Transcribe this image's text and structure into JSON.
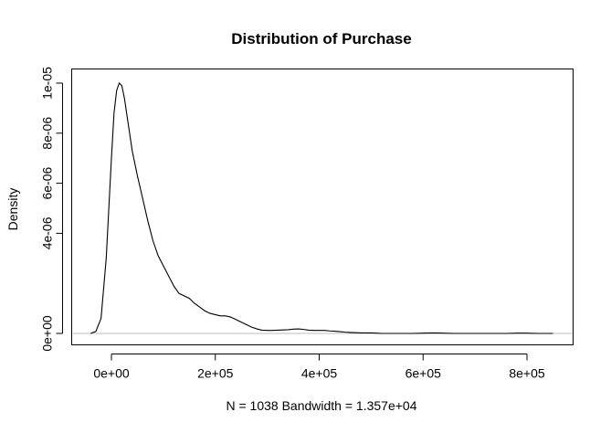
{
  "chart_data": {
    "type": "line",
    "title": "Distribution of Purchase",
    "ylabel": "Density",
    "xlabel": "N = 1038   Bandwidth = 1.357e+04",
    "xlim": [
      -60000,
      900000
    ],
    "ylim": [
      -4e-07,
      1.035e-05
    ],
    "x_ticks": [
      0,
      200000,
      400000,
      600000,
      800000
    ],
    "x_tick_labels": [
      "0e+00",
      "2e+05",
      "4e+05",
      "6e+05",
      "8e+05"
    ],
    "y_ticks": [
      0,
      4e-06,
      6e-06,
      8e-06,
      1e-05
    ],
    "y_tick_labels": [
      "0e+00",
      "4e-06",
      "6e-06",
      "8e-06",
      "1e-05"
    ],
    "zero_line": true,
    "grid": false,
    "series": [
      {
        "x": [
          -40000,
          -30000,
          -20000,
          -10000,
          0,
          5000,
          10000,
          15000,
          20000,
          25000,
          30000,
          40000,
          50000,
          60000,
          70000,
          80000,
          90000,
          100000,
          110000,
          120000,
          130000,
          140000,
          150000,
          160000,
          170000,
          180000,
          190000,
          200000,
          210000,
          220000,
          230000,
          240000,
          250000,
          260000,
          270000,
          280000,
          290000,
          300000,
          310000,
          320000,
          330000,
          340000,
          350000,
          360000,
          370000,
          380000,
          390000,
          400000,
          410000,
          420000,
          430000,
          440000,
          450000,
          460000,
          470000,
          480000,
          490000,
          500000,
          510000,
          520000,
          530000,
          540000,
          550000,
          560000,
          580000,
          600000,
          620000,
          640000,
          660000,
          680000,
          700000,
          720000,
          740000,
          760000,
          780000,
          800000,
          820000,
          840000,
          850000
        ],
        "y": [
          0.0,
          8e-08,
          6e-07,
          3e-06,
          7e-06,
          8.8e-06,
          9.7e-06,
          1e-05,
          9.9e-06,
          9.4e-06,
          8.7e-06,
          7.3e-06,
          6.3e-06,
          5.4e-06,
          4.5e-06,
          3.7e-06,
          3.1e-06,
          2.7e-06,
          2.3e-06,
          1.9e-06,
          1.6e-06,
          1.5e-06,
          1.4e-06,
          1.2e-06,
          1.05e-06,
          9e-07,
          8e-07,
          7.5e-07,
          7e-07,
          7e-07,
          6.5e-07,
          5.5e-07,
          4.5e-07,
          3.5e-07,
          2.5e-07,
          1.8e-07,
          1.3e-07,
          1.2e-07,
          1.2e-07,
          1.3e-07,
          1.4e-07,
          1.5e-07,
          1.7e-07,
          1.8e-07,
          1.6e-07,
          1.3e-07,
          1.2e-07,
          1.2e-07,
          1.2e-07,
          1e-07,
          9e-08,
          7e-08,
          5e-08,
          4e-08,
          3e-08,
          2e-08,
          2e-08,
          2e-08,
          1e-08,
          0.0,
          0.0,
          0.0,
          0.0,
          0.0,
          0.0,
          1e-08,
          2e-08,
          1e-08,
          0.0,
          0.0,
          0.0,
          0.0,
          0.0,
          0.0,
          1e-08,
          1e-08,
          0.0,
          0.0,
          0.0
        ]
      }
    ]
  }
}
